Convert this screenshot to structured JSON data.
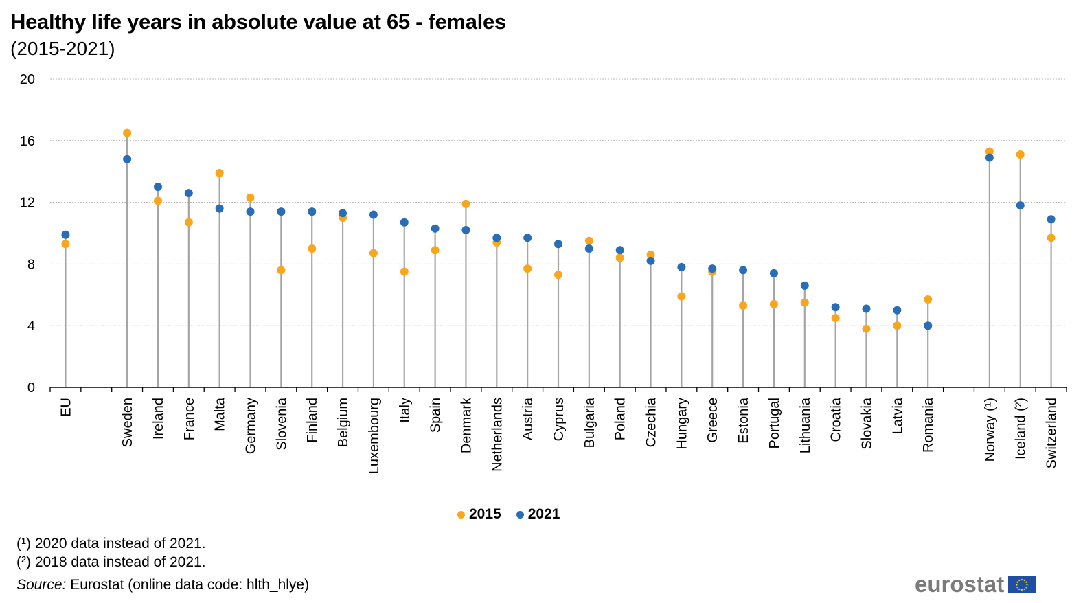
{
  "chart_data": {
    "type": "scatter",
    "subtype": "dot-plot",
    "title": "Healthy life years in absolute value at 65 - females",
    "subtitle": "(2015-2021)",
    "xlabel": "",
    "ylabel": "",
    "ylim": [
      0,
      20
    ],
    "yticks": [
      0,
      4,
      8,
      12,
      16,
      20
    ],
    "grid": true,
    "legend_position": "bottom",
    "categories": [
      "EU",
      "",
      "Sweden",
      "Ireland",
      "France",
      "Malta",
      "Germany",
      "Slovenia",
      "Finland",
      "Belgium",
      "Luxembourg",
      "Italy",
      "Spain",
      "Denmark",
      "Netherlands",
      "Austria",
      "Cyprus",
      "Bulgaria",
      "Poland",
      "Czechia",
      "Hungary",
      "Greece",
      "Estonia",
      "Portugal",
      "Lithuania",
      "Croatia",
      "Slovakia",
      "Latvia",
      "Romania",
      "",
      "Norway (¹)",
      "Iceland (²)",
      "Switzerland"
    ],
    "series": [
      {
        "name": "2015",
        "color": "#f9a61c",
        "values": [
          9.3,
          null,
          16.5,
          12.1,
          10.7,
          13.9,
          12.3,
          7.6,
          9.0,
          11.0,
          8.7,
          7.5,
          8.9,
          11.9,
          9.4,
          7.7,
          7.3,
          9.5,
          8.4,
          8.6,
          5.9,
          7.5,
          5.3,
          5.4,
          5.5,
          4.5,
          3.8,
          4.0,
          5.7,
          null,
          15.3,
          15.1,
          9.7
        ]
      },
      {
        "name": "2021",
        "color": "#286db8",
        "values": [
          9.9,
          null,
          14.8,
          13.0,
          12.6,
          11.6,
          11.4,
          11.4,
          11.4,
          11.3,
          11.2,
          10.7,
          10.3,
          10.2,
          9.7,
          9.7,
          9.3,
          9.0,
          8.9,
          8.2,
          7.8,
          7.7,
          7.6,
          7.4,
          6.6,
          5.2,
          5.1,
          5.0,
          4.0,
          null,
          14.9,
          11.8,
          10.9
        ]
      }
    ]
  },
  "footnotes": [
    "(¹) 2020 data instead of 2021.",
    "(²) 2018 data instead of 2021."
  ],
  "source": {
    "label": "Source:",
    "text": " Eurostat (online data code: hlth_hlye)"
  },
  "logo": {
    "text": "eurostat"
  }
}
